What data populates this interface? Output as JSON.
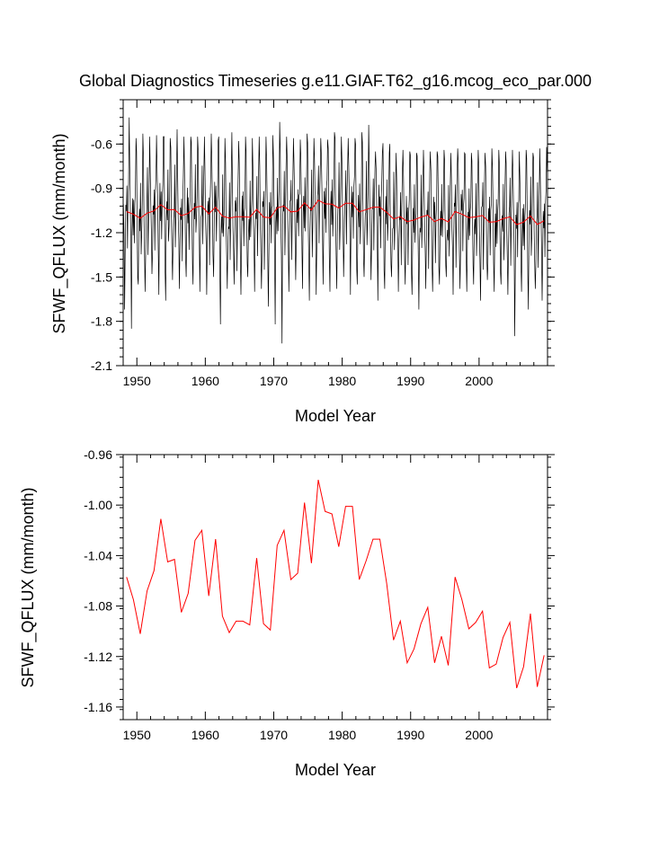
{
  "chart_data": [
    {
      "type": "line",
      "title": "Global Diagnostics Timeseries g.e11.GIAF.T62_g16.mcog_eco_par.000",
      "xlabel": "Model Year",
      "ylabel": "SFWF_QFLUX (mm/month)",
      "xlim": [
        1948,
        2010
      ],
      "ylim": [
        -2.1,
        -0.3
      ],
      "xticks": [
        1950,
        1960,
        1970,
        1980,
        1990,
        2000
      ],
      "xtick_labels": [
        "1950",
        "1960",
        "1970",
        "1980",
        "1990",
        "2000"
      ],
      "yticks": [
        -2.1,
        -1.8,
        -1.5,
        -1.2,
        -0.9,
        -0.6
      ],
      "ytick_labels": [
        "-2.1",
        "-1.8",
        "-1.5",
        "-1.2",
        "-0.9",
        "-0.6"
      ],
      "series": [
        {
          "kind": "monthly",
          "color": "#000000",
          "monthly_cycle": [
            -1.1,
            -1.38,
            -1.62,
            -1.28,
            -1.05,
            -1.15,
            -0.9,
            -1.35,
            -1.1,
            -0.93,
            -0.62,
            -0.74
          ],
          "annual_peaks": [
            -0.42,
            -0.56,
            -0.53,
            -0.55,
            -0.54,
            -0.55,
            -0.56,
            -0.5,
            -0.55,
            -0.55,
            -0.55,
            -0.55,
            -0.53,
            -0.58,
            -0.56,
            -0.52,
            -0.58,
            -0.55,
            -0.56,
            -0.55,
            -0.55,
            -0.54,
            -0.45,
            -0.55,
            -0.56,
            -0.57,
            -0.53,
            -0.56,
            -0.56,
            -0.57,
            -0.52,
            -0.55,
            -0.56,
            -0.56,
            -0.52,
            -0.47,
            -0.65,
            -0.66,
            -0.66,
            -0.66,
            -0.64,
            -0.65,
            -0.66,
            -0.64,
            -0.65,
            -0.65,
            -0.64,
            -0.66,
            -0.63,
            -0.66,
            -0.66,
            -0.64,
            -0.66,
            -0.63,
            -0.64,
            -0.65,
            -0.64,
            -0.65,
            -0.64,
            -0.66,
            -0.63,
            -0.62
          ],
          "annual_troughs": [
            -1.72,
            -1.85,
            -1.55,
            -1.6,
            -1.48,
            -1.62,
            -1.66,
            -1.52,
            -1.58,
            -1.5,
            -1.55,
            -1.6,
            -1.62,
            -1.5,
            -1.82,
            -1.58,
            -1.55,
            -1.62,
            -1.5,
            -1.6,
            -1.58,
            -1.7,
            -1.82,
            -1.95,
            -1.6,
            -1.52,
            -1.58,
            -1.66,
            -1.62,
            -1.55,
            -1.6,
            -1.58,
            -1.5,
            -1.62,
            -1.55,
            -1.5,
            -1.52,
            -1.66,
            -1.58,
            -1.5,
            -1.6,
            -1.55,
            -1.62,
            -1.72,
            -1.58,
            -1.6,
            -1.55,
            -1.5,
            -1.62,
            -1.58,
            -1.6,
            -1.55,
            -1.66,
            -1.52,
            -1.6,
            -1.55,
            -1.62,
            -1.9,
            -1.6,
            -1.72,
            -1.58,
            -1.66
          ]
        },
        {
          "kind": "annual",
          "color": "#ff0000",
          "x": [
            1948.5,
            1949.5,
            1950.5,
            1951.5,
            1952.5,
            1953.5,
            1954.5,
            1955.5,
            1956.5,
            1957.5,
            1958.5,
            1959.5,
            1960.5,
            1961.5,
            1962.5,
            1963.5,
            1964.5,
            1965.5,
            1966.5,
            1967.5,
            1968.5,
            1969.5,
            1970.5,
            1971.5,
            1972.5,
            1973.5,
            1974.5,
            1975.5,
            1976.5,
            1977.5,
            1978.5,
            1979.5,
            1980.5,
            1981.5,
            1982.5,
            1983.5,
            1984.5,
            1985.5,
            1986.5,
            1987.5,
            1988.5,
            1989.5,
            1990.5,
            1991.5,
            1992.5,
            1993.5,
            1994.5,
            1995.5,
            1996.5,
            1997.5,
            1998.5,
            1999.5,
            2000.5,
            2001.5,
            2002.5,
            2003.5,
            2004.5,
            2005.5,
            2006.5,
            2007.5,
            2008.5,
            2009.5
          ]
        }
      ]
    },
    {
      "type": "line",
      "title": "",
      "xlabel": "Model Year",
      "ylabel": "SFWF_QFLUX (mm/month)",
      "xlim": [
        1948,
        2010
      ],
      "ylim": [
        -1.17,
        -0.96
      ],
      "xticks": [
        1950,
        1960,
        1970,
        1980,
        1990,
        2000
      ],
      "xtick_labels": [
        "1950",
        "1960",
        "1970",
        "1980",
        "1990",
        "2000"
      ],
      "yticks": [
        -1.16,
        -1.12,
        -1.08,
        -1.04,
        -1.0,
        -0.96
      ],
      "ytick_labels": [
        "-1.16",
        "-1.12",
        "-1.08",
        "-1.04",
        "-1.00",
        "-0.96"
      ],
      "series": [
        {
          "color": "#ff0000",
          "x": [
            1948.5,
            1949.5,
            1950.5,
            1951.5,
            1952.5,
            1953.5,
            1954.5,
            1955.5,
            1956.5,
            1957.5,
            1958.5,
            1959.5,
            1960.5,
            1961.5,
            1962.5,
            1963.5,
            1964.5,
            1965.5,
            1966.5,
            1967.5,
            1968.5,
            1969.5,
            1970.5,
            1971.5,
            1972.5,
            1973.5,
            1974.5,
            1975.5,
            1976.5,
            1977.5,
            1978.5,
            1979.5,
            1980.5,
            1981.5,
            1982.5,
            1983.5,
            1984.5,
            1985.5,
            1986.5,
            1987.5,
            1988.5,
            1989.5,
            1990.5,
            1991.5,
            1992.5,
            1993.5,
            1994.5,
            1995.5,
            1996.5,
            1997.5,
            1998.5,
            1999.5,
            2000.5,
            2001.5,
            2002.5,
            2003.5,
            2004.5,
            2005.5,
            2006.5,
            2007.5,
            2008.5,
            2009.5
          ],
          "values": [
            -1.057,
            -1.075,
            -1.102,
            -1.068,
            -1.052,
            -1.011,
            -1.045,
            -1.043,
            -1.085,
            -1.07,
            -1.028,
            -1.02,
            -1.072,
            -1.027,
            -1.088,
            -1.101,
            -1.092,
            -1.092,
            -1.095,
            -1.042,
            -1.094,
            -1.099,
            -1.032,
            -1.02,
            -1.059,
            -1.054,
            -0.998,
            -1.046,
            -0.98,
            -1.005,
            -1.007,
            -1.033,
            -1.001,
            -1.001,
            -1.059,
            -1.044,
            -1.027,
            -1.027,
            -1.062,
            -1.107,
            -1.092,
            -1.125,
            -1.114,
            -1.094,
            -1.081,
            -1.125,
            -1.104,
            -1.127,
            -1.057,
            -1.075,
            -1.098,
            -1.093,
            -1.084,
            -1.129,
            -1.126,
            -1.105,
            -1.093,
            -1.145,
            -1.128,
            -1.086,
            -1.144,
            -1.119
          ]
        }
      ]
    }
  ]
}
